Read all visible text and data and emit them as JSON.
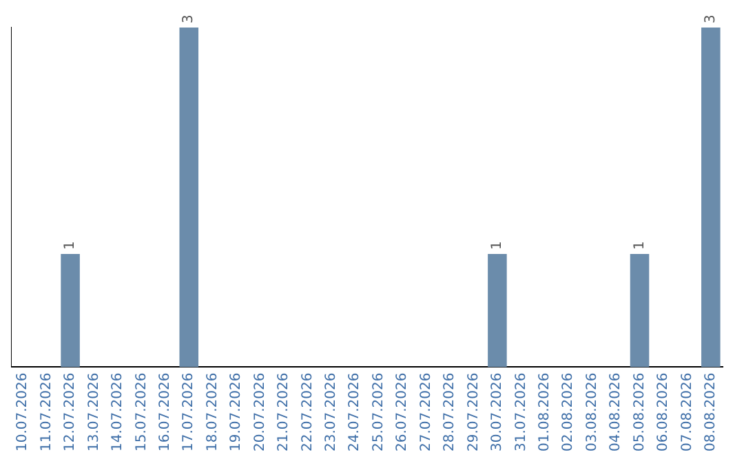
{
  "chart_data": {
    "type": "bar",
    "categories": [
      "10.07.2026",
      "11.07.2026",
      "12.07.2026",
      "13.07.2026",
      "14.07.2026",
      "15.07.2026",
      "16.07.2026",
      "17.07.2026",
      "18.07.2026",
      "19.07.2026",
      "20.07.2026",
      "21.07.2026",
      "22.07.2026",
      "23.07.2026",
      "24.07.2026",
      "25.07.2026",
      "26.07.2026",
      "27.07.2026",
      "28.07.2026",
      "29.07.2026",
      "30.07.2026",
      "31.07.2026",
      "01.08.2026",
      "02.08.2026",
      "03.08.2026",
      "04.08.2026",
      "05.08.2026",
      "06.08.2026",
      "07.08.2026",
      "08.08.2026"
    ],
    "values": [
      0,
      0,
      1,
      0,
      0,
      0,
      0,
      3,
      0,
      0,
      0,
      0,
      0,
      0,
      0,
      0,
      0,
      0,
      0,
      0,
      1,
      0,
      0,
      0,
      0,
      0,
      1,
      0,
      0,
      3
    ],
    "value_labels": [
      null,
      null,
      "1",
      null,
      null,
      null,
      null,
      "3",
      null,
      null,
      null,
      null,
      null,
      null,
      null,
      null,
      null,
      null,
      null,
      null,
      "1",
      null,
      null,
      null,
      null,
      null,
      "1",
      null,
      null,
      "3"
    ],
    "color": "#6b8cab",
    "ylim": [
      0,
      3
    ],
    "tick_labels": "x",
    "grid": false,
    "legend": false
  }
}
